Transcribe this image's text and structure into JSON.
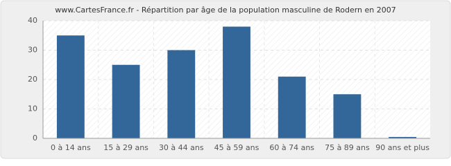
{
  "chart_data": {
    "type": "bar",
    "title": "www.CartesFrance.fr - Répartition par âge de la population masculine de Rodern en 2007",
    "categories": [
      "0 à 14 ans",
      "15 à 29 ans",
      "30 à 44 ans",
      "45 à 59 ans",
      "60 à 74 ans",
      "75 à 89 ans",
      "90 ans et plus"
    ],
    "values": [
      35,
      25,
      30,
      38,
      21,
      15,
      0
    ],
    "color": "#336699",
    "ylim": [
      0,
      40
    ],
    "yticks": [
      0,
      10,
      20,
      30,
      40
    ],
    "grid": true
  }
}
